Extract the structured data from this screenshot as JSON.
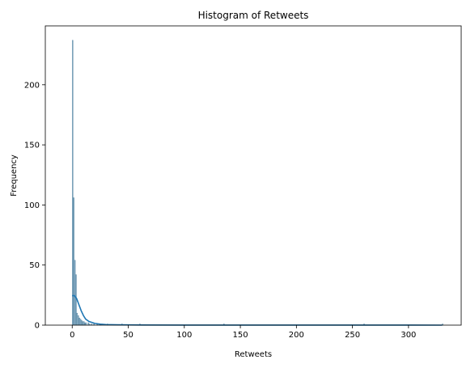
{
  "chart_data": {
    "type": "bar",
    "title": "Histogram of Retweets",
    "xlabel": "Retweets",
    "ylabel": "Frequency",
    "xlim": [
      -24,
      347
    ],
    "ylim": [
      0,
      249
    ],
    "xticks": [
      0,
      50,
      100,
      150,
      200,
      250,
      300
    ],
    "yticks": [
      0,
      50,
      100,
      150,
      200
    ],
    "bin_width": 0.8,
    "bins": [
      {
        "x": 0,
        "count": 237
      },
      {
        "x": 1,
        "count": 106
      },
      {
        "x": 2,
        "count": 54
      },
      {
        "x": 3,
        "count": 42
      },
      {
        "x": 4,
        "count": 10
      },
      {
        "x": 5,
        "count": 8
      },
      {
        "x": 6,
        "count": 6
      },
      {
        "x": 7,
        "count": 5
      },
      {
        "x": 8,
        "count": 4
      },
      {
        "x": 9,
        "count": 3
      },
      {
        "x": 10,
        "count": 3
      },
      {
        "x": 11,
        "count": 2
      },
      {
        "x": 12,
        "count": 2
      },
      {
        "x": 14,
        "count": 2
      },
      {
        "x": 15,
        "count": 1
      },
      {
        "x": 17,
        "count": 1
      },
      {
        "x": 19,
        "count": 1
      },
      {
        "x": 22,
        "count": 1
      },
      {
        "x": 25,
        "count": 1
      },
      {
        "x": 31,
        "count": 1
      },
      {
        "x": 44,
        "count": 1
      },
      {
        "x": 60,
        "count": 1
      },
      {
        "x": 135,
        "count": 1
      },
      {
        "x": 260,
        "count": 1
      },
      {
        "x": 330,
        "count": 1
      }
    ],
    "kde": {
      "x": [
        0,
        2,
        4,
        6,
        8,
        10,
        12,
        15,
        20,
        25,
        30,
        40,
        60,
        100,
        200,
        330
      ],
      "y": [
        24.5,
        24.5,
        22,
        17,
        12,
        8,
        5,
        3,
        1.5,
        0.8,
        0.5,
        0.3,
        0.15,
        0.05,
        0.02,
        0.01
      ]
    },
    "colors": {
      "bar_fill": "#7aa6c2",
      "bar_stroke": "#4f7f9c",
      "kde_line": "#1f77b4"
    },
    "grid": false,
    "legend": "none"
  }
}
